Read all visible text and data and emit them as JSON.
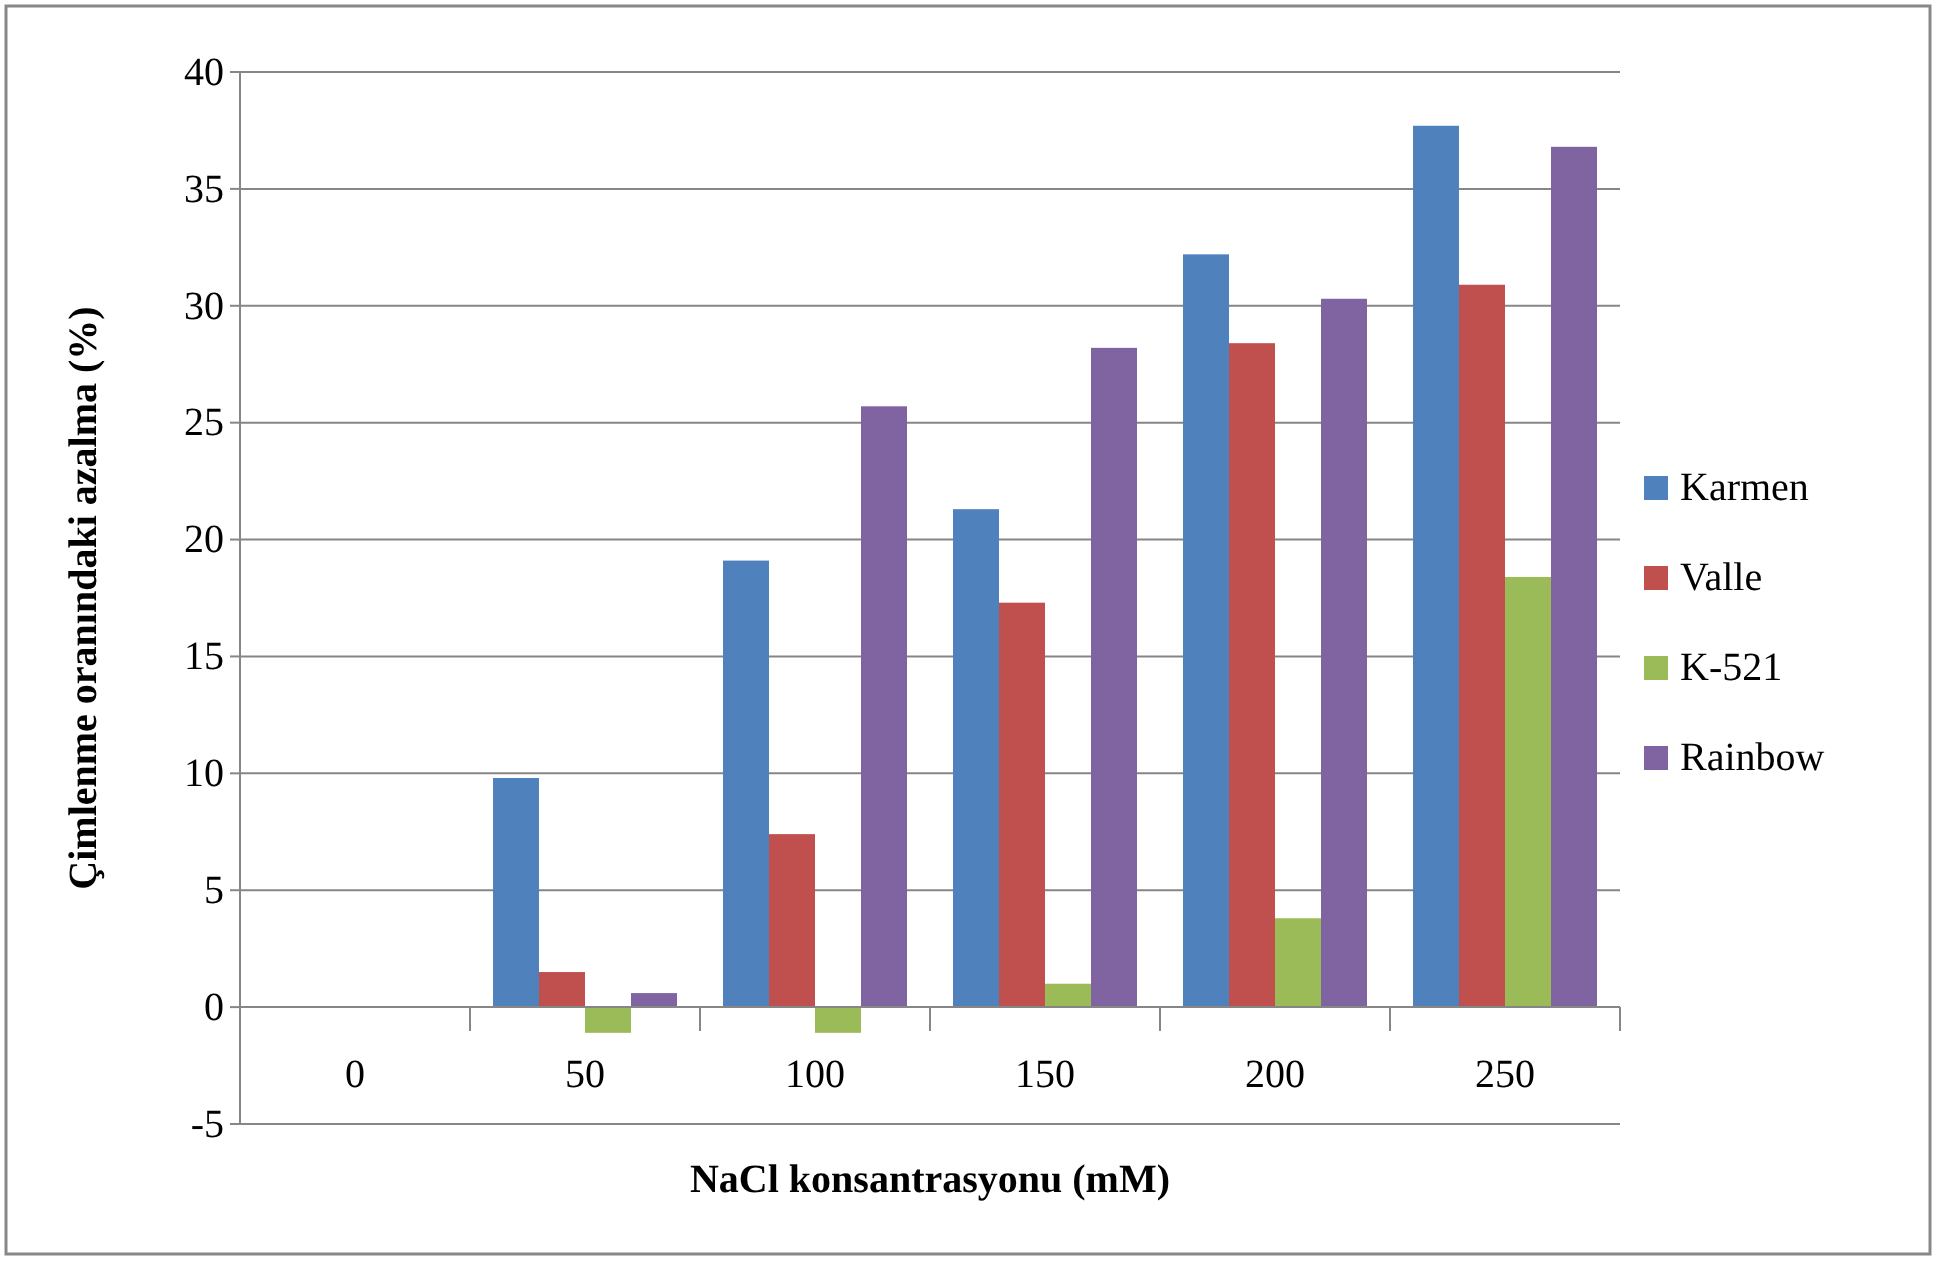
{
  "chart_data": {
    "type": "bar",
    "xlabel": "NaCl konsantrasyonu  (mM)",
    "ylabel": "Çimlenme oranındaki  azalma (%)",
    "categories": [
      "0",
      "50",
      "100",
      "150",
      "200",
      "250"
    ],
    "series": [
      {
        "name": "Karmen",
        "color": "#4f81bd",
        "values": [
          0,
          9.8,
          19.1,
          21.3,
          32.2,
          37.7
        ]
      },
      {
        "name": "Valle",
        "color": "#c0504d",
        "values": [
          0,
          1.5,
          7.4,
          17.3,
          28.4,
          30.9
        ]
      },
      {
        "name": "K-521",
        "color": "#9bbb59",
        "values": [
          0,
          -1.1,
          -1.1,
          1.0,
          3.8,
          18.4
        ]
      },
      {
        "name": "Rainbow",
        "color": "#8064a2",
        "values": [
          0,
          0.6,
          25.7,
          28.2,
          30.3,
          36.8
        ]
      }
    ],
    "ylim": [
      -5,
      40
    ],
    "yticks": [
      -5,
      0,
      5,
      10,
      15,
      20,
      25,
      30,
      35,
      40
    ],
    "grid": "y",
    "legend": "right"
  }
}
